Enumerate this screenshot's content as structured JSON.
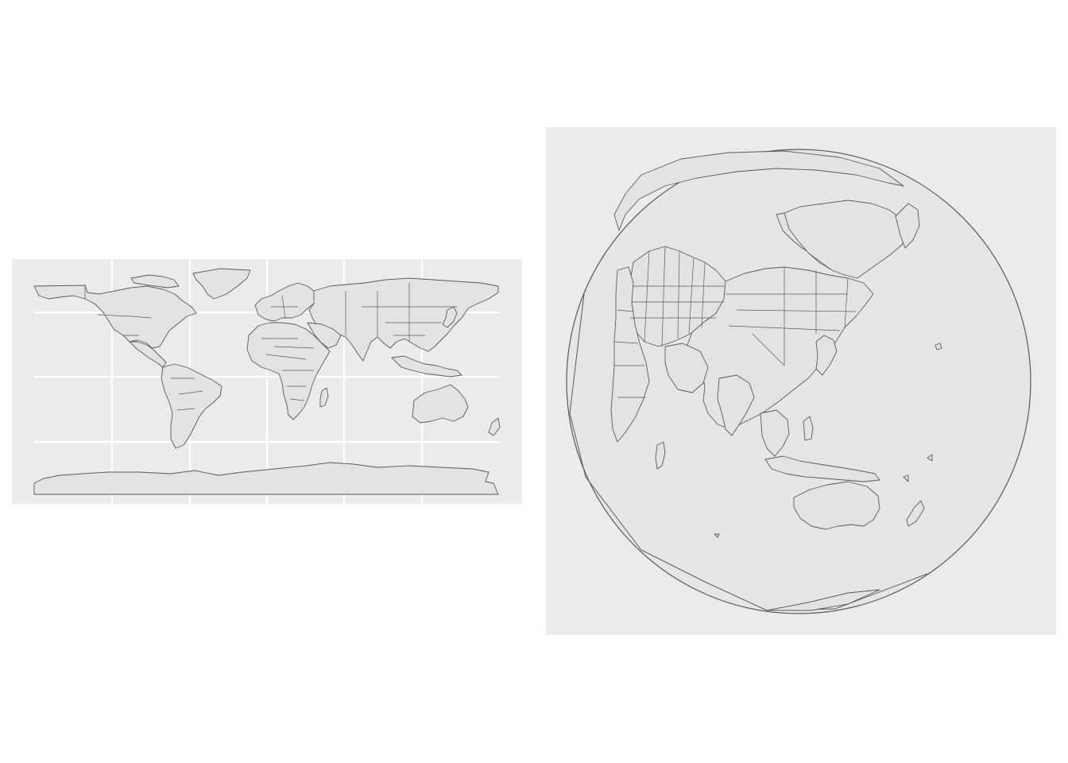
{
  "figure": {
    "panels": [
      {
        "id": "left",
        "projection": "equirectangular",
        "graticule": true
      },
      {
        "id": "right",
        "projection": "orthographic",
        "center": "Asia",
        "graticule": false
      }
    ],
    "colors": {
      "panel_bg": "#ebebeb",
      "land_fill": "#e3e3e3",
      "outline": "#5a5a5a",
      "grid": "#ffffff"
    }
  }
}
